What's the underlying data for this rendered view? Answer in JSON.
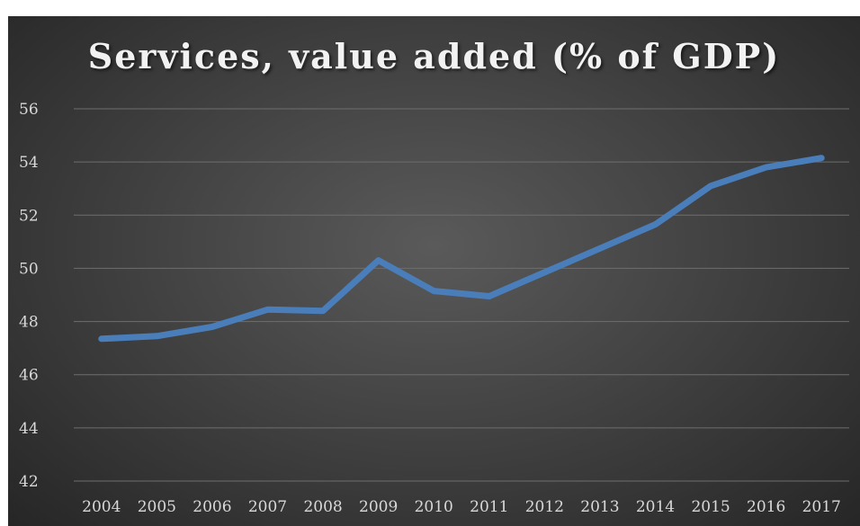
{
  "chart_data": {
    "type": "line",
    "title": "Services, value added (% of GDP)",
    "xlabel": "",
    "ylabel": "",
    "categories": [
      "2004",
      "2005",
      "2006",
      "2007",
      "2008",
      "2009",
      "2010",
      "2011",
      "2012",
      "2013",
      "2014",
      "2015",
      "2016",
      "2017"
    ],
    "series": [
      {
        "values": [
          47.35,
          47.45,
          47.8,
          48.45,
          48.4,
          50.3,
          49.15,
          48.95,
          49.85,
          50.75,
          51.65,
          53.1,
          53.8,
          54.15
        ],
        "color": "#4a7ebb"
      }
    ],
    "ylim": [
      42,
      56
    ],
    "yticks": [
      42,
      44,
      46,
      48,
      50,
      52,
      54,
      56
    ],
    "grid": true,
    "legend": "none"
  }
}
